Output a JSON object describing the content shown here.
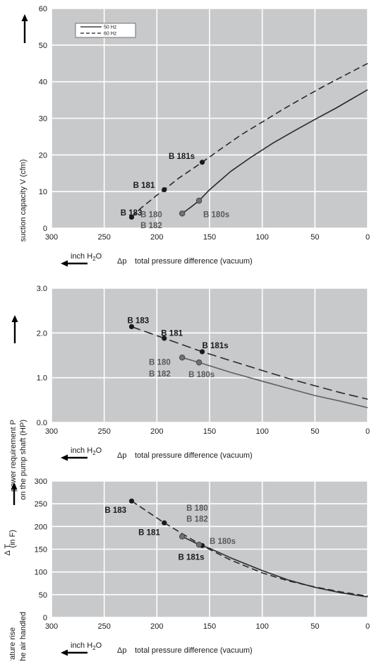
{
  "colors": {
    "plot_bg": "#c8c9cb",
    "grid": "#ffffff",
    "line_dark": "#2a2a2a",
    "line_gray": "#606060",
    "text_dark": "#1a1a1a",
    "text_gray": "#5a5a5a"
  },
  "chart_data": [
    {
      "type": "line",
      "xlabel_prefix": "Δp",
      "xlabel": "total pressure difference (vacuum)",
      "xunit": "inch H",
      "xunit_sub": "2",
      "xunit_tail": "O",
      "ylabel": "suction capacity V (cfm)",
      "ylabel_line2": "",
      "xlim": [
        0,
        300
      ],
      "x_reversed": true,
      "ylim": [
        0,
        60
      ],
      "xticks": [
        "300",
        "250",
        "200",
        "150",
        "100",
        "50",
        "0"
      ],
      "xtick_values": [
        300,
        250,
        200,
        150,
        100,
        50,
        0
      ],
      "yticks": [
        "0",
        "10",
        "20",
        "30",
        "40",
        "50",
        "60"
      ],
      "ytick_values": [
        0,
        10,
        20,
        30,
        40,
        50,
        60
      ],
      "grid": true,
      "legend": {
        "placement": "top-left",
        "entries": [
          {
            "label": "50 Hz",
            "style": "solid"
          },
          {
            "label": "60 Hz",
            "style": "dashed"
          }
        ]
      },
      "series": [
        {
          "name": "60 Hz",
          "style": "dashed",
          "color": "#2a2a2a",
          "x": [
            224,
            215,
            200,
            193,
            180,
            157,
            140,
            120,
            100,
            80,
            60,
            40,
            20,
            0
          ],
          "y": [
            3,
            5.5,
            9,
            10.5,
            13.5,
            18,
            21.5,
            25.5,
            29,
            32.5,
            35.8,
            39,
            42,
            45
          ]
        },
        {
          "name": "50 Hz",
          "style": "solid",
          "color": "#2a2a2a",
          "x": [
            176,
            168,
            160,
            150,
            130,
            110,
            90,
            70,
            50,
            30,
            15,
            0
          ],
          "y": [
            4,
            5.7,
            7.5,
            10.5,
            15.5,
            19.5,
            23.2,
            26.5,
            29.7,
            32.8,
            35.3,
            37.8
          ]
        }
      ],
      "points": [
        {
          "label": "B 183",
          "x": 224,
          "y": 3,
          "tone": "dark"
        },
        {
          "label": "B 181",
          "x": 193,
          "y": 10.5,
          "tone": "dark"
        },
        {
          "label": "B 181s",
          "x": 157,
          "y": 18,
          "tone": "dark"
        },
        {
          "label": "",
          "x": 176,
          "y": 4,
          "tone": "gray"
        },
        {
          "label": "B 180s",
          "x": 160,
          "y": 7.5,
          "tone": "gray"
        }
      ],
      "annotations": [
        {
          "text": "B 183",
          "x": 214,
          "y": 4.2,
          "tone": "dark",
          "anchor": "end"
        },
        {
          "text": "B 181",
          "x": 202,
          "y": 11.8,
          "tone": "dark",
          "anchor": "end"
        },
        {
          "text": "B 181s",
          "x": 164,
          "y": 19.7,
          "tone": "dark",
          "anchor": "end"
        },
        {
          "text": "B 180",
          "x": 195,
          "y": 3.8,
          "tone": "gray",
          "anchor": "end"
        },
        {
          "text": "B 182",
          "x": 195,
          "y": 0.8,
          "tone": "gray",
          "anchor": "end"
        },
        {
          "text": "B 180s",
          "x": 156,
          "y": 3.8,
          "tone": "gray",
          "anchor": "start"
        }
      ]
    },
    {
      "type": "line",
      "xlabel_prefix": "Δp",
      "xlabel": "total pressure difference (vacuum)",
      "xunit": "inch H",
      "xunit_sub": "2",
      "xunit_tail": "O",
      "ylabel": "power requirement P",
      "ylabel_line2": "on the pump shaft (HP)",
      "xlim": [
        0,
        300
      ],
      "x_reversed": true,
      "ylim": [
        0,
        3
      ],
      "xticks": [
        "300",
        "250",
        "200",
        "150",
        "100",
        "50",
        "0"
      ],
      "xtick_values": [
        300,
        250,
        200,
        150,
        100,
        50,
        0
      ],
      "yticks": [
        "0.0",
        "1.0",
        "2.0",
        "3.0"
      ],
      "ytick_values": [
        0,
        1,
        2,
        3
      ],
      "grid": true,
      "series": [
        {
          "name": "60 Hz",
          "style": "dashed",
          "color": "#2a2a2a",
          "x": [
            224,
            193,
            157,
            130,
            100,
            75,
            50,
            25,
            0
          ],
          "y": [
            2.14,
            1.88,
            1.58,
            1.38,
            1.16,
            0.98,
            0.82,
            0.66,
            0.52
          ]
        },
        {
          "name": "50 Hz",
          "style": "solid",
          "color": "#606060",
          "x": [
            176,
            160,
            130,
            100,
            75,
            50,
            25,
            0
          ],
          "y": [
            1.45,
            1.34,
            1.12,
            0.92,
            0.76,
            0.6,
            0.47,
            0.33
          ]
        }
      ],
      "points": [
        {
          "label": "B 183",
          "x": 224,
          "y": 2.14,
          "tone": "dark"
        },
        {
          "label": "B 181",
          "x": 193,
          "y": 1.88,
          "tone": "dark"
        },
        {
          "label": "B 181s",
          "x": 157,
          "y": 1.58,
          "tone": "dark"
        },
        {
          "label": "",
          "x": 176,
          "y": 1.45,
          "tone": "gray"
        },
        {
          "label": "B 180s",
          "x": 160,
          "y": 1.34,
          "tone": "gray"
        }
      ],
      "annotations": [
        {
          "text": "B 183",
          "x": 228,
          "y": 2.28,
          "tone": "dark",
          "anchor": "start"
        },
        {
          "text": "B 181",
          "x": 196,
          "y": 2.0,
          "tone": "dark",
          "anchor": "start"
        },
        {
          "text": "B 181s",
          "x": 157,
          "y": 1.72,
          "tone": "dark",
          "anchor": "start"
        },
        {
          "text": "B 180",
          "x": 187,
          "y": 1.35,
          "tone": "gray",
          "anchor": "end"
        },
        {
          "text": "B 182",
          "x": 187,
          "y": 1.09,
          "tone": "gray",
          "anchor": "end"
        },
        {
          "text": "B 180s",
          "x": 170,
          "y": 1.07,
          "tone": "gray",
          "anchor": "start"
        }
      ]
    },
    {
      "type": "line",
      "xlabel_prefix": "Δp",
      "xlabel": "total pressure difference (vacuum)",
      "xunit": "inch H",
      "xunit_sub": "2",
      "xunit_tail": "O",
      "ylabel": "temperature rise",
      "ylabel_delta": "Δ T",
      "ylabel_unit": "(in F)",
      "ylabel_line2": "on the air handled",
      "xlim": [
        0,
        300
      ],
      "x_reversed": true,
      "ylim": [
        0,
        300
      ],
      "xticks": [
        "300",
        "250",
        "200",
        "150",
        "100",
        "50",
        "0"
      ],
      "xtick_values": [
        300,
        250,
        200,
        150,
        100,
        50,
        0
      ],
      "yticks": [
        "0",
        "50",
        "100",
        "150",
        "200",
        "250",
        "300"
      ],
      "ytick_values": [
        0,
        50,
        100,
        150,
        200,
        250,
        300
      ],
      "grid": true,
      "series": [
        {
          "name": "60 Hz",
          "style": "dashed",
          "color": "#2a2a2a",
          "x": [
            224,
            193,
            157,
            130,
            100,
            75,
            50,
            25,
            0
          ],
          "y": [
            256,
            208,
            158,
            126,
            98,
            80,
            67,
            56,
            47
          ]
        },
        {
          "name": "50 Hz",
          "style": "solid",
          "color": "#2a2a2a",
          "x": [
            176,
            160,
            150,
            130,
            100,
            75,
            50,
            25,
            0
          ],
          "y": [
            178,
            160,
            152,
            131,
            103,
            82,
            66,
            54,
            45
          ]
        }
      ],
      "points": [
        {
          "label": "B 183",
          "x": 224,
          "y": 256,
          "tone": "dark"
        },
        {
          "label": "B 181",
          "x": 193,
          "y": 208,
          "tone": "dark"
        },
        {
          "label": "B 181s",
          "x": 157,
          "y": 158,
          "tone": "dark"
        },
        {
          "label": "",
          "x": 176,
          "y": 178,
          "tone": "gray"
        },
        {
          "label": "B 180s",
          "x": 160,
          "y": 160,
          "tone": "gray"
        }
      ],
      "annotations": [
        {
          "text": "B 183",
          "x": 229,
          "y": 236,
          "tone": "dark",
          "anchor": "end"
        },
        {
          "text": "B 181",
          "x": 197,
          "y": 187,
          "tone": "dark",
          "anchor": "end"
        },
        {
          "text": "B 181s",
          "x": 155,
          "y": 133,
          "tone": "dark",
          "anchor": "end"
        },
        {
          "text": "B 180",
          "x": 172,
          "y": 241,
          "tone": "gray",
          "anchor": "start"
        },
        {
          "text": "B 182",
          "x": 172,
          "y": 217,
          "tone": "gray",
          "anchor": "start"
        },
        {
          "text": "B 180s",
          "x": 150,
          "y": 168,
          "tone": "gray",
          "anchor": "start"
        }
      ]
    }
  ]
}
